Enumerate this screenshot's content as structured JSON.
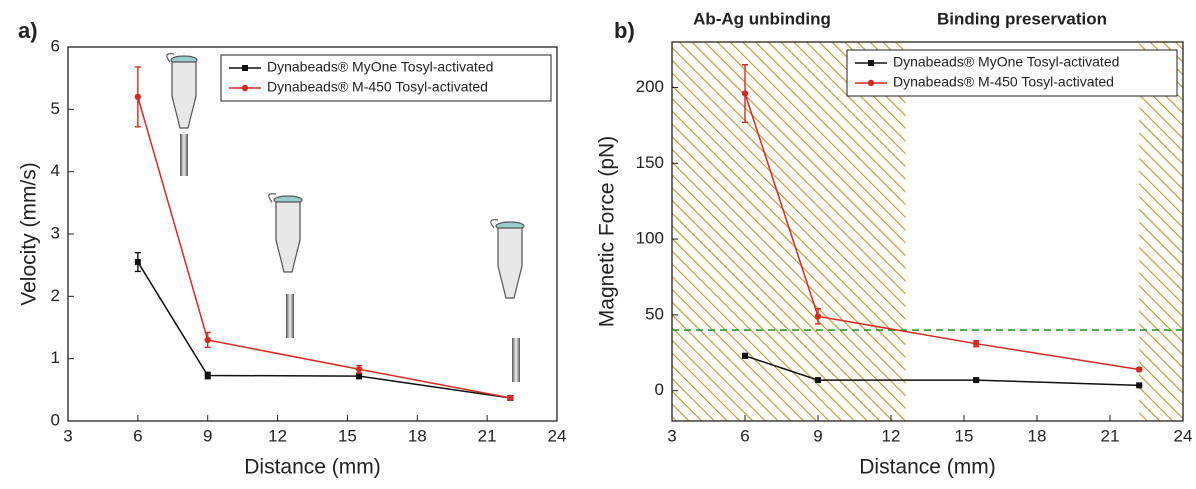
{
  "chart_data": [
    {
      "type": "line",
      "panel_label": "a)",
      "xlabel": "Distance (mm)",
      "ylabel": "Velocity (mm/s)",
      "xlim": [
        3,
        24
      ],
      "xticks": [
        3,
        6,
        9,
        12,
        15,
        18,
        21,
        24
      ],
      "ylim": [
        0,
        6
      ],
      "yticks": [
        0,
        1,
        2,
        3,
        4,
        5,
        6
      ],
      "legend": "upper right",
      "x": [
        6,
        9,
        15.5,
        22
      ],
      "series": [
        {
          "name": "Dynabeads® MyOne Tosyl-activated",
          "color": "#111111",
          "marker": "square",
          "values": [
            2.55,
            0.73,
            0.72,
            0.37
          ],
          "errors": [
            0.15,
            0.05,
            0.04,
            0.02
          ]
        },
        {
          "name": "Dynabeads® M-450 Tosyl-activated",
          "color": "#d42a20",
          "marker": "circle",
          "values": [
            5.2,
            1.3,
            0.83,
            0.37
          ],
          "errors": [
            0.48,
            0.12,
            0.06,
            0.02
          ]
        }
      ]
    },
    {
      "type": "line",
      "panel_label": "b)",
      "xlabel": "Distance (mm)",
      "ylabel": "Magnetic Force (pN)",
      "xlim": [
        3,
        24
      ],
      "xticks": [
        3,
        6,
        9,
        12,
        15,
        18,
        21,
        24
      ],
      "ylim": [
        -20,
        230
      ],
      "yticks": [
        0,
        50,
        100,
        150,
        200
      ],
      "legend": "upper right",
      "annotations": [
        "Ab-Ag unbinding",
        "Binding preservation"
      ],
      "hline": {
        "value": 40,
        "color": "#2a9a2a"
      },
      "shaded_regions": [
        [
          3,
          12.6
        ],
        [
          22.2,
          24
        ]
      ],
      "shade_color": "#c8922c",
      "x": [
        6,
        9,
        15.5,
        22.2
      ],
      "series": [
        {
          "name": "Dynabeads® MyOne Tosyl-activated",
          "color": "#111111",
          "marker": "square",
          "values": [
            23,
            7,
            7,
            3.5
          ],
          "errors": [
            1.5,
            0.8,
            0.8,
            0.5
          ]
        },
        {
          "name": "Dynabeads® M-450 Tosyl-activated",
          "color": "#d42a20",
          "marker": "circle",
          "values": [
            196,
            49,
            31,
            14
          ],
          "errors": [
            19,
            5,
            2,
            1
          ]
        }
      ]
    }
  ]
}
